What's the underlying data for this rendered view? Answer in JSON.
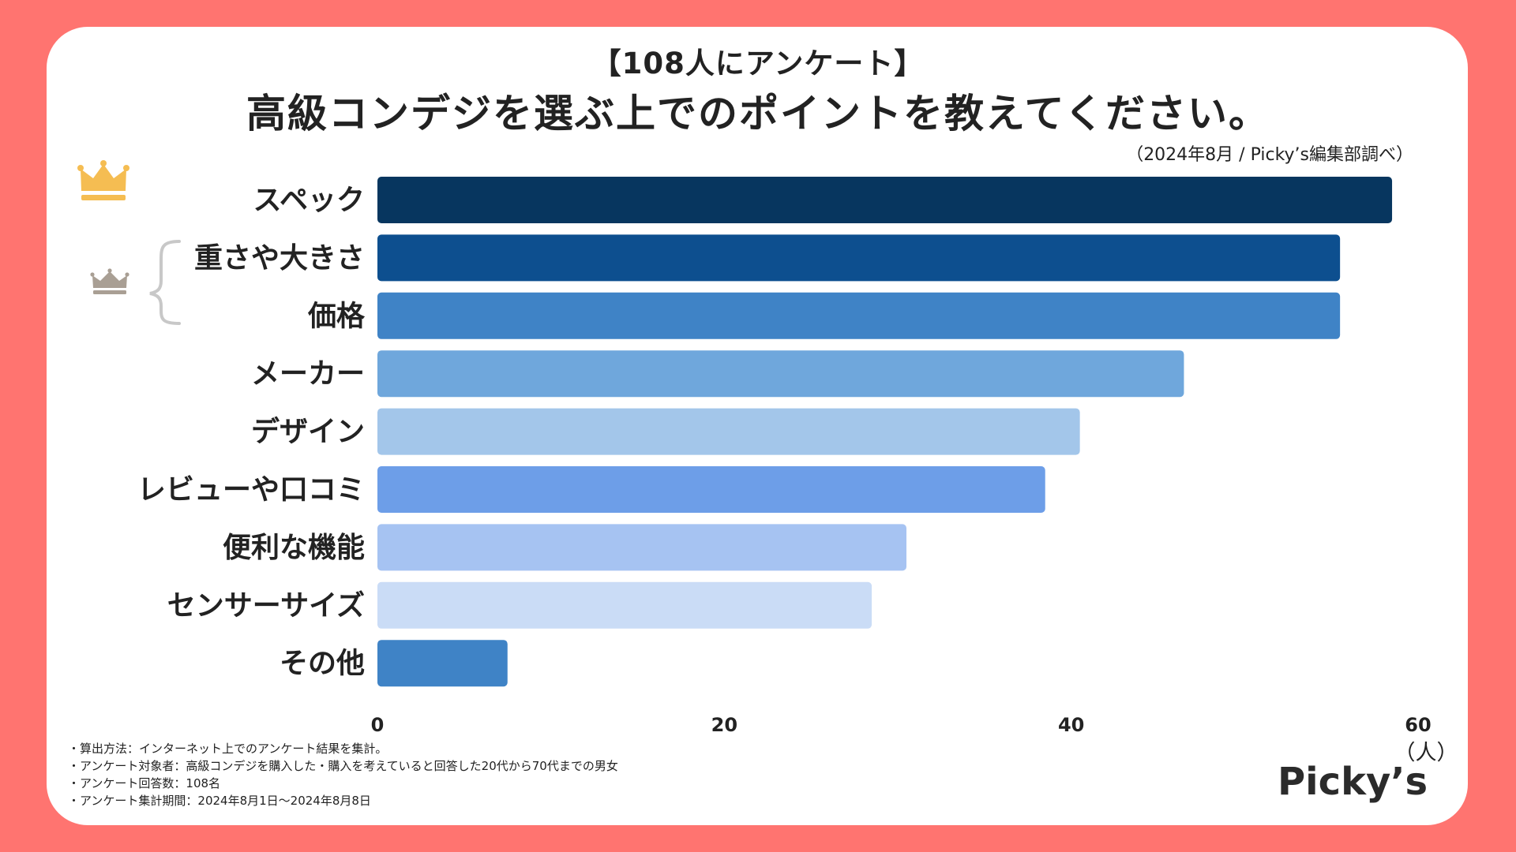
{
  "header": {
    "subtitle": "【108人にアンケート】",
    "title": "高級コンデジを選ぶ上でのポイントを教えてください。",
    "source": "（2024年8月 / Picky’s編集部調べ）"
  },
  "chart_data": {
    "type": "bar",
    "orientation": "horizontal",
    "categories": [
      "スペック",
      "重さや大きさ",
      "価格",
      "メーカー",
      "デザイン",
      "レビューや口コミ",
      "便利な機能",
      "センサーサイズ",
      "その他"
    ],
    "values": [
      58.5,
      55.5,
      55.5,
      46.5,
      40.5,
      38.5,
      30.5,
      28.5,
      7.5
    ],
    "colors": [
      "#07365f",
      "#0d4f8f",
      "#3f83c6",
      "#6fa7dc",
      "#a3c6ea",
      "#6d9ee8",
      "#a6c3f2",
      "#cadcf6",
      "#3f83c6"
    ],
    "xticks": [
      0,
      20,
      40,
      60
    ],
    "xlim": [
      0,
      60
    ],
    "xlabel": "（人）",
    "ylabel": "",
    "rank1_color": "#f5bd52",
    "rank2_color": "#a99f94"
  },
  "notes": [
    "・算出方法：インターネット上でのアンケート結果を集計。",
    "・アンケート対象者：高級コンデジを購入した・購入を考えていると回答した20代から70代までの男女",
    "・アンケート回答数：108名",
    "・アンケート集計期間：2024年8月1日〜2024年8月8日"
  ],
  "brand": "Picky’s"
}
